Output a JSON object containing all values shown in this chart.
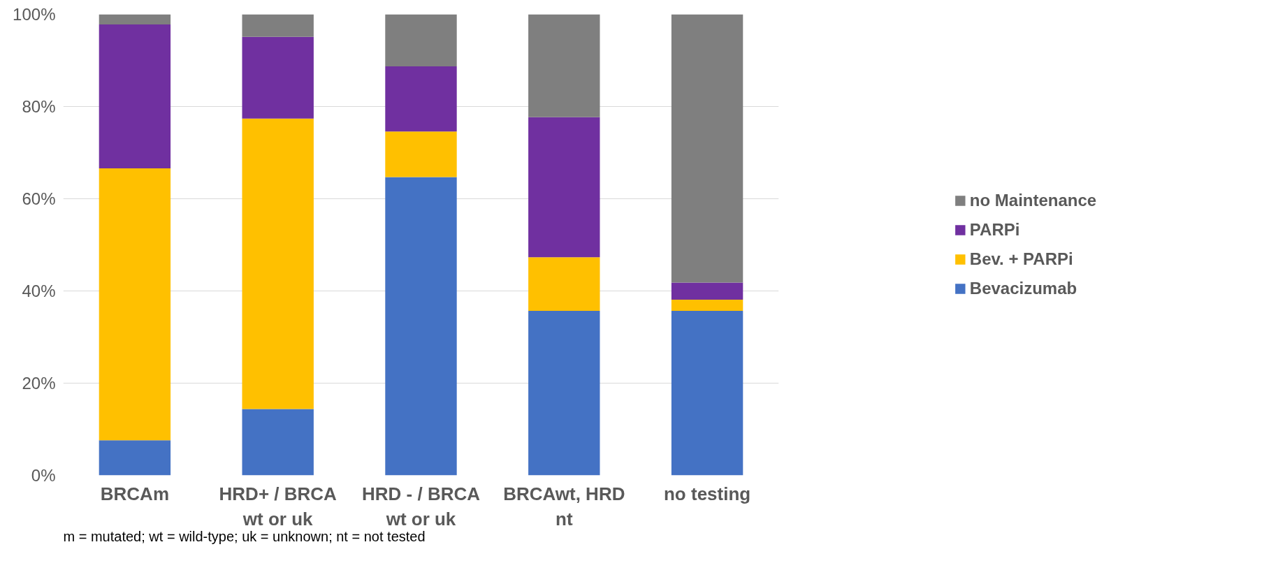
{
  "chart_data": {
    "type": "bar",
    "stacked": true,
    "categories": [
      "BRCAm",
      "HRD+ / BRCA wt or uk",
      "HRD - / BRCA wt or uk",
      "BRCAwt, HRD nt",
      "no testing"
    ],
    "series": [
      {
        "name": "Bevacizumab",
        "color": "#4472c4",
        "values": [
          7.6,
          14.4,
          64.7,
          35.7,
          35.7
        ]
      },
      {
        "name": "Bev. + PARPi",
        "color": "#ffc000",
        "values": [
          59.0,
          63.0,
          9.9,
          11.6,
          2.4
        ]
      },
      {
        "name": "PARPi",
        "color": "#7030a0",
        "values": [
          31.2,
          17.7,
          14.1,
          30.4,
          3.7
        ]
      },
      {
        "name": "no Maintenance",
        "color": "#7f7f7f",
        "values": [
          2.2,
          4.9,
          11.3,
          22.3,
          58.2
        ]
      }
    ],
    "ylim": [
      0,
      100
    ],
    "yticks": [
      {
        "value": 0,
        "label": "0%"
      },
      {
        "value": 20,
        "label": "20%"
      },
      {
        "value": 40,
        "label": "40%"
      },
      {
        "value": 60,
        "label": "60%"
      },
      {
        "value": 80,
        "label": "80%"
      },
      {
        "value": 100,
        "label": "100%"
      }
    ],
    "grid": "y",
    "legend": "right",
    "annotations": [
      "m = mutated; wt = wild-type; uk = unknown; nt = not tested"
    ]
  }
}
